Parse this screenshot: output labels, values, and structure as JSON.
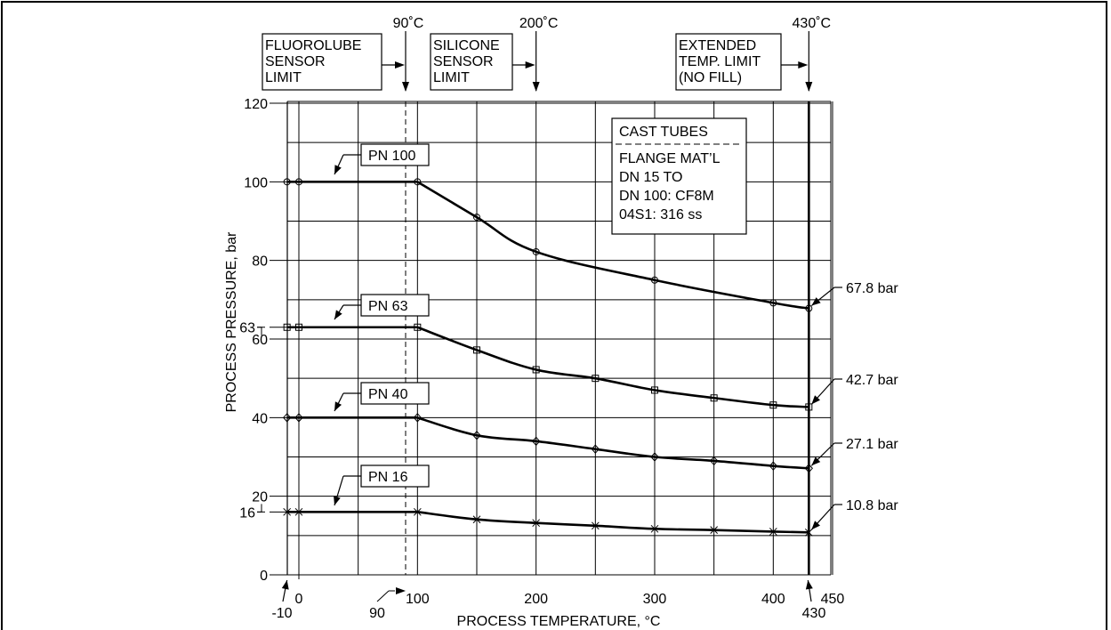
{
  "chart_data": {
    "type": "line",
    "xlabel": "PROCESS TEMPERATURE, °C",
    "ylabel": "PROCESS PRESSURE, bar",
    "xlim": [
      -10,
      450
    ],
    "ylim": [
      0,
      120
    ],
    "x_ticks": [
      {
        "value": -10,
        "label": "-10"
      },
      {
        "value": 0,
        "label": "0"
      },
      {
        "value": 90,
        "label": "90"
      },
      {
        "value": 100,
        "label": "100"
      },
      {
        "value": 200,
        "label": "200"
      },
      {
        "value": 300,
        "label": "300"
      },
      {
        "value": 400,
        "label": "400"
      },
      {
        "value": 430,
        "label": "430"
      },
      {
        "value": 450,
        "label": "450"
      }
    ],
    "y_ticks": [
      {
        "value": 0,
        "label": "0"
      },
      {
        "value": 16,
        "label": "16"
      },
      {
        "value": 20,
        "label": "20"
      },
      {
        "value": 40,
        "label": "40"
      },
      {
        "value": 60,
        "label": "60"
      },
      {
        "value": 63,
        "label": "63"
      },
      {
        "value": 80,
        "label": "80"
      },
      {
        "value": 100,
        "label": "100"
      },
      {
        "value": 120,
        "label": "120"
      }
    ],
    "series": [
      {
        "name": "PN 100",
        "marker": "circle",
        "x": [
          -10,
          0,
          100,
          150,
          200,
          300,
          400,
          430
        ],
        "y": [
          100,
          100,
          100,
          91,
          82.2,
          75,
          69.2,
          67.8
        ],
        "end_label": "67.8 bar"
      },
      {
        "name": "PN 63",
        "marker": "square",
        "x": [
          -10,
          0,
          100,
          150,
          200,
          250,
          300,
          350,
          400,
          430
        ],
        "y": [
          63,
          63,
          63,
          57.2,
          52.2,
          50,
          47,
          45,
          43.2,
          42.7
        ],
        "end_label": "42.7 bar"
      },
      {
        "name": "PN 40",
        "marker": "diamond",
        "x": [
          -10,
          0,
          100,
          150,
          200,
          250,
          300,
          350,
          400,
          430
        ],
        "y": [
          40,
          40,
          40,
          35.5,
          34,
          32,
          30,
          29,
          27.7,
          27.1
        ],
        "end_label": "27.1 bar"
      },
      {
        "name": "PN 16",
        "marker": "cross",
        "x": [
          -10,
          0,
          100,
          150,
          200,
          250,
          300,
          350,
          400,
          430
        ],
        "y": [
          16,
          16,
          16,
          14.1,
          13.2,
          12.5,
          11.7,
          11.4,
          11,
          10.8
        ],
        "end_label": "10.8 bar"
      }
    ],
    "temperature_limits": [
      {
        "value": 90,
        "temp_label": "90˚C",
        "box_lines": [
          "FLUOROLUBE",
          "SENSOR",
          "LIMIT"
        ],
        "line_style": "dashed"
      },
      {
        "value": 200,
        "temp_label": "200˚C",
        "box_lines": [
          "SILICONE",
          "SENSOR",
          "LIMIT"
        ],
        "line_style": "none"
      },
      {
        "value": 430,
        "temp_label": "430˚C",
        "box_lines": [
          "EXTENDED",
          "TEMP. LIMIT",
          "(NO FILL)"
        ],
        "line_style": "solid"
      }
    ],
    "note_box": {
      "header": "CAST TUBES",
      "lines": [
        "FLANGE MAT’L",
        "DN 15 TO",
        "DN 100: CF8M",
        "04S1: 316 ss"
      ]
    },
    "grid": true
  }
}
